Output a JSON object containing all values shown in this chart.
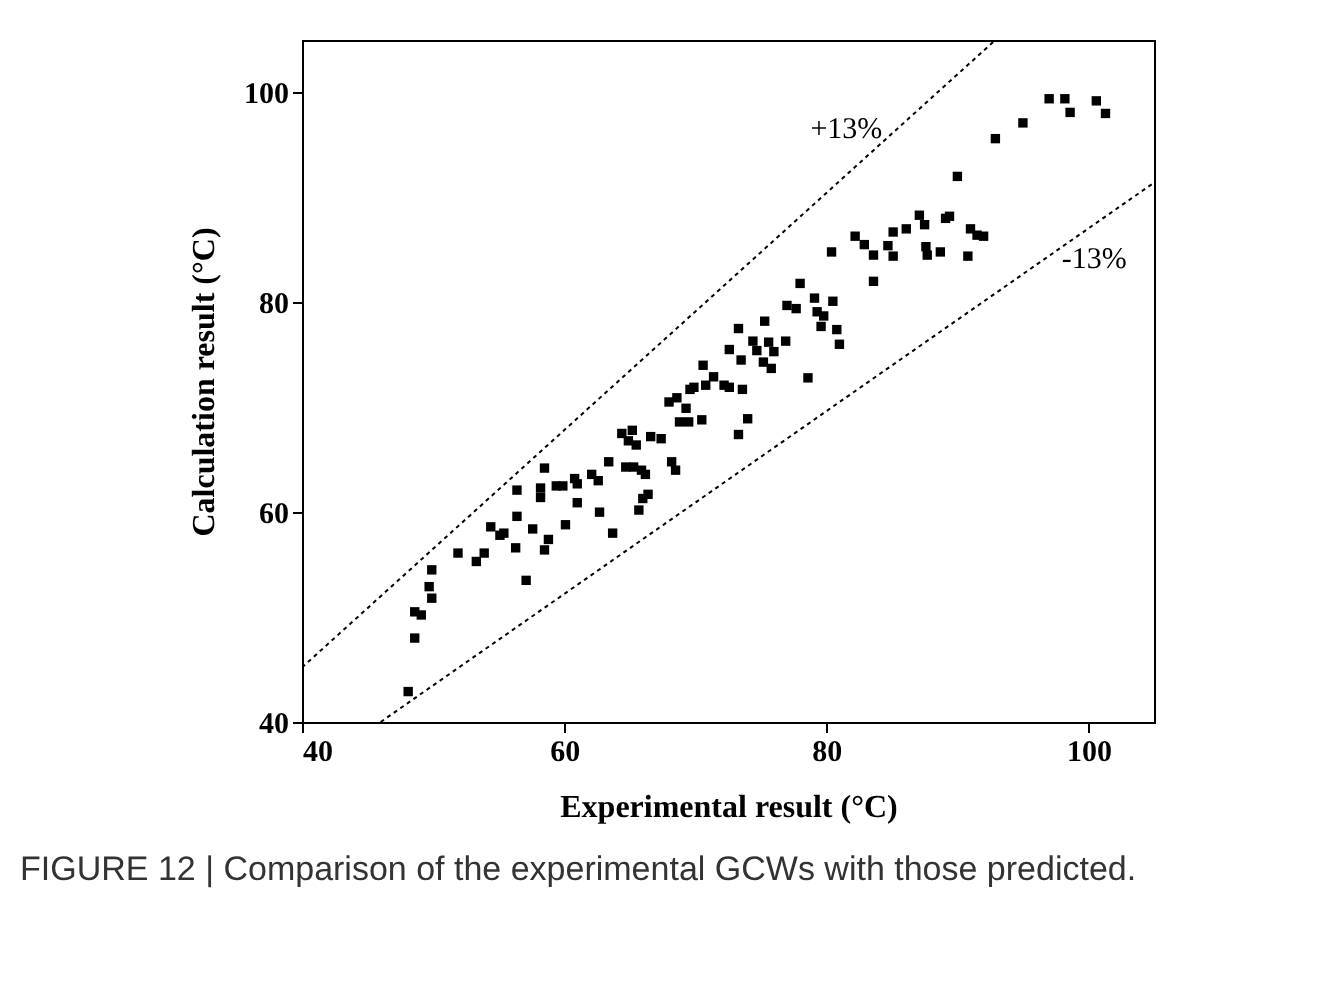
{
  "chart_data": {
    "type": "scatter",
    "xlabel": "Experimental result (°C)",
    "ylabel": "Calculation result (°C)",
    "xlim": [
      40,
      105
    ],
    "ylim": [
      40,
      105
    ],
    "xticks": [
      40,
      60,
      80,
      100
    ],
    "yticks": [
      40,
      60,
      80,
      100
    ],
    "grid": false,
    "series": [
      {
        "type": "scatter",
        "color": "#000000",
        "marker": "square",
        "x": [
          48.1,
          48.6,
          48.6,
          49.1,
          49.7,
          49.9,
          49.9,
          51.9,
          53.3,
          53.9,
          54.4,
          55.1,
          55.4,
          56.3,
          56.4,
          56.4,
          57.1,
          57.6,
          58.2,
          58.2,
          58.5,
          58.5,
          58.8,
          59.4,
          59.9,
          60.1,
          60.8,
          61.0,
          61.0,
          62.1,
          62.6,
          62.7,
          63.4,
          63.7,
          64.4,
          64.7,
          64.9,
          65.2,
          65.3,
          65.5,
          65.7,
          65.9,
          66.0,
          66.2,
          66.4,
          66.6,
          67.4,
          68.0,
          68.2,
          68.5,
          68.6,
          68.8,
          69.3,
          69.5,
          69.6,
          69.9,
          70.5,
          70.6,
          70.8,
          71.4,
          72.2,
          72.6,
          72.6,
          73.3,
          73.3,
          73.5,
          73.6,
          74.0,
          74.4,
          74.7,
          75.2,
          75.3,
          75.6,
          75.8,
          76.0,
          76.9,
          77.0,
          77.7,
          78.0,
          78.6,
          79.1,
          79.3,
          79.6,
          79.8,
          80.4,
          80.5,
          80.8,
          81.0,
          82.2,
          82.9,
          83.6,
          83.6,
          84.7,
          85.1,
          85.1,
          86.1,
          87.1,
          87.5,
          87.6,
          87.7,
          88.7,
          89.1,
          89.4,
          90.0,
          90.8,
          91.0,
          91.5,
          92.0,
          92.9,
          95.0,
          97.0,
          98.2,
          98.6,
          100.6,
          101.3
        ],
        "values": [
          42.9,
          48.0,
          50.5,
          50.2,
          52.9,
          51.8,
          54.5,
          56.1,
          55.3,
          56.1,
          58.6,
          57.8,
          58.0,
          56.6,
          59.6,
          62.1,
          53.5,
          58.4,
          62.3,
          61.4,
          64.2,
          56.4,
          57.4,
          62.5,
          62.5,
          58.8,
          63.2,
          62.7,
          60.9,
          63.6,
          63.0,
          60.0,
          64.8,
          58.0,
          67.5,
          64.3,
          66.8,
          67.8,
          64.3,
          66.4,
          60.2,
          64.0,
          61.3,
          63.6,
          61.7,
          67.2,
          67.0,
          70.5,
          64.8,
          64.0,
          70.9,
          68.6,
          69.9,
          68.6,
          71.7,
          71.9,
          68.8,
          74.0,
          72.1,
          72.9,
          72.1,
          71.9,
          75.5,
          77.5,
          67.4,
          74.5,
          71.7,
          68.9,
          76.3,
          75.4,
          74.3,
          78.2,
          76.2,
          73.7,
          75.3,
          76.3,
          79.7,
          79.4,
          81.8,
          72.8,
          80.4,
          79.1,
          77.7,
          78.7,
          84.8,
          80.1,
          77.4,
          76.0,
          86.3,
          85.5,
          84.5,
          82.0,
          85.4,
          86.7,
          84.4,
          87.0,
          88.3,
          87.4,
          85.3,
          84.5,
          84.8,
          88.0,
          88.2,
          92.0,
          84.4,
          87.0,
          86.4,
          86.3,
          95.6,
          97.1,
          99.4,
          99.4,
          98.1,
          99.2,
          98.0
        ]
      },
      {
        "type": "line",
        "name": "+13%",
        "color": "#000000",
        "line_style": "dotted",
        "x": [
          40,
          92.9
        ],
        "values": [
          45.2,
          105
        ]
      },
      {
        "type": "line",
        "name": "-13%",
        "color": "#000000",
        "line_style": "dotted",
        "x": [
          46,
          105
        ],
        "values": [
          40,
          91.4
        ]
      }
    ],
    "annotations": [
      "FIGURE 12 | Comparison of the experimental GCWs with those predicted."
    ]
  }
}
